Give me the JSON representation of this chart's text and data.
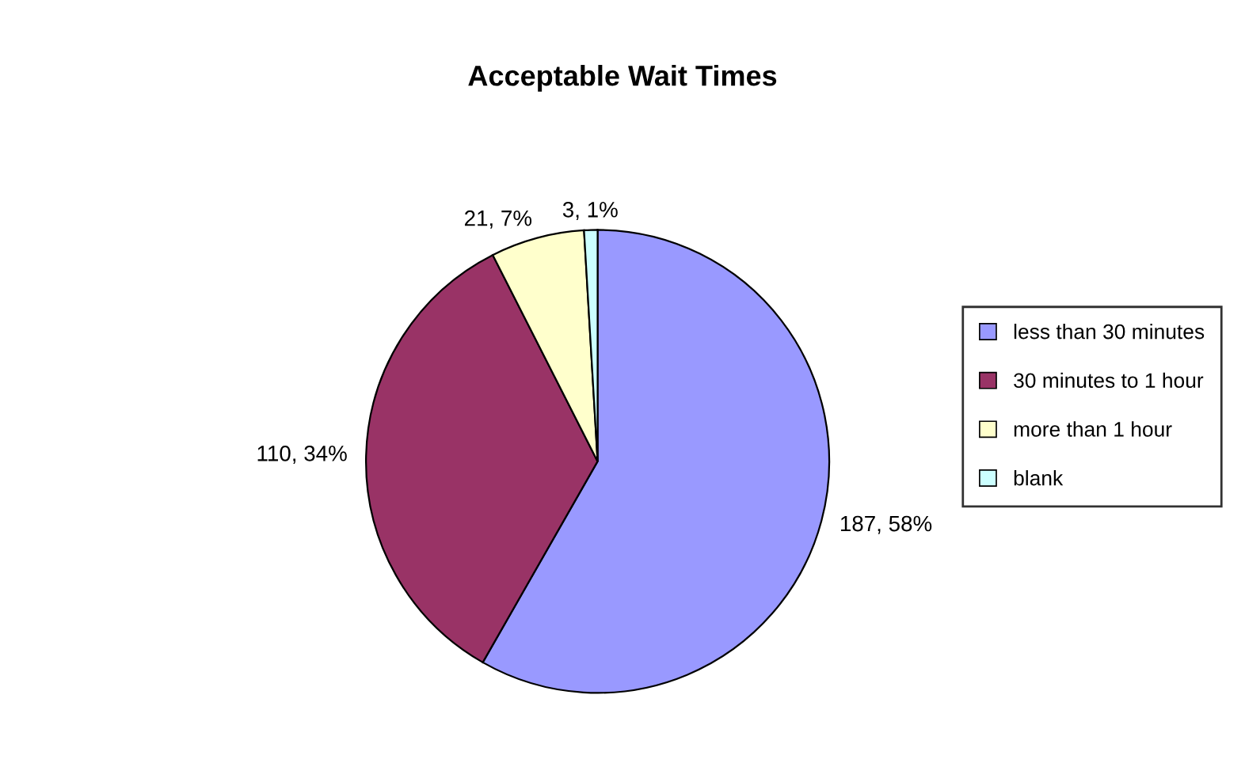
{
  "chart_data": {
    "type": "pie",
    "title": "Acceptable Wait Times",
    "categories": [
      "less than 30 minutes",
      "30 minutes to 1 hour",
      "more than 1 hour",
      "blank"
    ],
    "values": [
      187,
      110,
      21,
      3
    ],
    "colors": [
      "#9999ff",
      "#993366",
      "#ffffcc",
      "#ccffff"
    ],
    "value_labels": [
      "187, 58%",
      "110, 34%",
      "21, 7%",
      "3, 1%"
    ],
    "legend": "right"
  }
}
